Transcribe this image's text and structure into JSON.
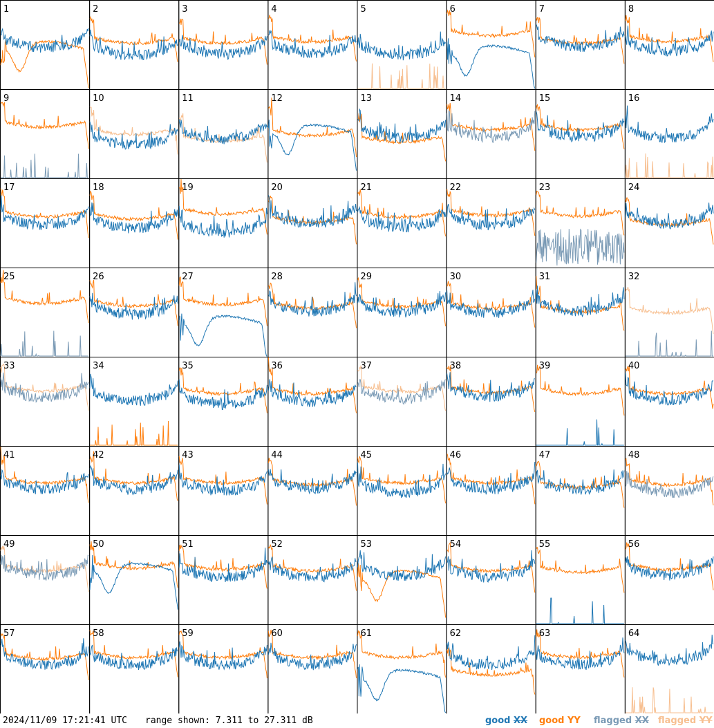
{
  "footer": {
    "timestamp": "2024/11/09 17:21:41 UTC",
    "range_prefix": "range shown:",
    "range_min": "7.311",
    "range_to": "to",
    "range_max": "27.311",
    "range_unit": "dB"
  },
  "legend": [
    {
      "prefix": "good",
      "pol": "XX",
      "color": "#1f77b4"
    },
    {
      "prefix": "good",
      "pol": "YY",
      "color": "#ff7f0e"
    },
    {
      "prefix": "flagged",
      "pol": "XX",
      "color": "#7a9ab5"
    },
    {
      "prefix": "flagged",
      "pol": "YY",
      "color": "#f7bf90"
    }
  ],
  "colors": {
    "good_xx": "#1f77b4",
    "good_yy": "#ff7f0e",
    "flagged_xx": "#7a9ab5",
    "flagged_yy": "#f7bf90"
  },
  "chart_data": {
    "type": "line",
    "description_units": "power (dB) vs frequency channel, per antenna panel",
    "range_db": [
      7.311,
      27.311
    ],
    "grid": {
      "rows": 8,
      "cols": 8
    },
    "panels": [
      {
        "id": "1",
        "xx": {
          "state": "good",
          "shape": "wave",
          "level": 18.8
        },
        "yy": {
          "state": "good",
          "shape": "dipcurve",
          "level": 16.0
        }
      },
      {
        "id": "2",
        "xx": {
          "state": "good",
          "shape": "wave",
          "level": 17.0
        },
        "yy": {
          "state": "good",
          "shape": "flat",
          "level": 19.0
        }
      },
      {
        "id": "3",
        "xx": {
          "state": "good",
          "shape": "wave",
          "level": 17.3
        },
        "yy": {
          "state": "good",
          "shape": "flat",
          "level": 19.0
        }
      },
      {
        "id": "4",
        "xx": {
          "state": "good",
          "shape": "wave",
          "level": 17.6
        },
        "yy": {
          "state": "good",
          "shape": "flat",
          "level": 19.3
        }
      },
      {
        "id": "5",
        "xx": {
          "state": "good",
          "shape": "wave",
          "level": 17.0
        },
        "yy": {
          "state": "flagged",
          "shape": "spikes",
          "level": 7.3
        }
      },
      {
        "id": "6",
        "xx": {
          "state": "good",
          "shape": "dipcurve",
          "level": 15.0
        },
        "yy": {
          "state": "good",
          "shape": "flat",
          "level": 20.7
        }
      },
      {
        "id": "7",
        "xx": {
          "state": "good",
          "shape": "wave",
          "level": 19.0
        },
        "yy": {
          "state": "good",
          "shape": "flat",
          "level": 19.0
        }
      },
      {
        "id": "8",
        "xx": {
          "state": "good",
          "shape": "wave",
          "level": 18.0
        },
        "yy": {
          "state": "good",
          "shape": "flat",
          "level": 19.4
        }
      },
      {
        "id": "9",
        "xx": {
          "state": "flagged",
          "shape": "spikes",
          "level": 7.3
        },
        "yy": {
          "state": "good",
          "shape": "flat",
          "level": 20.2
        }
      },
      {
        "id": "10",
        "xx": {
          "state": "good",
          "shape": "wave",
          "level": 17.0
        },
        "yy": {
          "state": "flagged",
          "shape": "flat",
          "level": 18.5
        }
      },
      {
        "id": "11",
        "xx": {
          "state": "good",
          "shape": "wave",
          "level": 18.3
        },
        "yy": {
          "state": "flagged",
          "shape": "flat",
          "level": 17.0
        }
      },
      {
        "id": "12",
        "xx": {
          "state": "good",
          "shape": "dipcurve",
          "level": 17.3
        },
        "yy": {
          "state": "good",
          "shape": "flat",
          "level": 18.3
        }
      },
      {
        "id": "13",
        "xx": {
          "state": "good",
          "shape": "wave",
          "level": 18.6
        },
        "yy": {
          "state": "good",
          "shape": "flat",
          "level": 16.8
        }
      },
      {
        "id": "14",
        "xx": {
          "state": "flagged",
          "shape": "wave",
          "level": 18.7
        },
        "yy": {
          "state": "good",
          "shape": "flat",
          "level": 19.6
        }
      },
      {
        "id": "15",
        "xx": {
          "state": "good",
          "shape": "wave",
          "level": 18.7
        },
        "yy": {
          "state": "good",
          "shape": "flat",
          "level": 19.6
        }
      },
      {
        "id": "16",
        "xx": {
          "state": "good",
          "shape": "wave",
          "level": 18.5
        },
        "yy": {
          "state": "flagged",
          "shape": "spikes",
          "level": 7.3
        }
      },
      {
        "id": "17",
        "xx": {
          "state": "good",
          "shape": "wave",
          "level": 19.0
        },
        "yy": {
          "state": "good",
          "shape": "flat",
          "level": 20.1
        }
      },
      {
        "id": "18",
        "xx": {
          "state": "good",
          "shape": "wave",
          "level": 18.3
        },
        "yy": {
          "state": "good",
          "shape": "flat",
          "level": 19.6
        }
      },
      {
        "id": "19",
        "xx": {
          "state": "good",
          "shape": "wave",
          "level": 17.2
        },
        "yy": {
          "state": "good",
          "shape": "flat",
          "level": 20.7
        }
      },
      {
        "id": "20",
        "xx": {
          "state": "good",
          "shape": "wave",
          "level": 19.4
        },
        "yy": {
          "state": "good",
          "shape": "flat",
          "level": 18.8
        }
      },
      {
        "id": "21",
        "xx": {
          "state": "good",
          "shape": "wave",
          "level": 18.5
        },
        "yy": {
          "state": "good",
          "shape": "flat",
          "level": 20.0
        }
      },
      {
        "id": "22",
        "xx": {
          "state": "good",
          "shape": "wave",
          "level": 19.0
        },
        "yy": {
          "state": "good",
          "shape": "flat",
          "level": 20.4
        }
      },
      {
        "id": "23",
        "xx": {
          "state": "flagged",
          "shape": "noise",
          "level": 10.0
        },
        "yy": {
          "state": "good",
          "shape": "flat",
          "level": 20.2
        }
      },
      {
        "id": "24",
        "xx": {
          "state": "good",
          "shape": "wave",
          "level": 19.3
        },
        "yy": {
          "state": "good",
          "shape": "flat",
          "level": 18.3
        }
      },
      {
        "id": "25",
        "xx": {
          "state": "flagged",
          "shape": "spikes",
          "level": 7.3
        },
        "yy": {
          "state": "good",
          "shape": "flat",
          "level": 20.7
        }
      },
      {
        "id": "26",
        "xx": {
          "state": "good",
          "shape": "wave",
          "level": 19.0
        },
        "yy": {
          "state": "good",
          "shape": "flat",
          "level": 20.1
        }
      },
      {
        "id": "27",
        "xx": {
          "state": "good",
          "shape": "dipcurve",
          "level": 14.4
        },
        "yy": {
          "state": "good",
          "shape": "flat",
          "level": 20.4
        }
      },
      {
        "id": "28",
        "xx": {
          "state": "good",
          "shape": "wave",
          "level": 19.6
        },
        "yy": {
          "state": "good",
          "shape": "flat",
          "level": 19.6
        }
      },
      {
        "id": "29",
        "xx": {
          "state": "good",
          "shape": "wave",
          "level": 19.4
        },
        "yy": {
          "state": "good",
          "shape": "flat",
          "level": 20.0
        }
      },
      {
        "id": "30",
        "xx": {
          "state": "good",
          "shape": "wave",
          "level": 19.3
        },
        "yy": {
          "state": "good",
          "shape": "flat",
          "level": 19.6
        }
      },
      {
        "id": "31",
        "xx": {
          "state": "good",
          "shape": "wave",
          "level": 19.7
        },
        "yy": {
          "state": "good",
          "shape": "flat",
          "level": 18.8
        }
      },
      {
        "id": "32",
        "xx": {
          "state": "flagged",
          "shape": "spikes",
          "level": 7.3
        },
        "yy": {
          "state": "flagged",
          "shape": "flat",
          "level": 18.5
        }
      },
      {
        "id": "33",
        "xx": {
          "state": "flagged",
          "shape": "wave",
          "level": 20.4
        },
        "yy": {
          "state": "flagged",
          "shape": "flat",
          "level": 21.0
        }
      },
      {
        "id": "34",
        "xx": {
          "state": "good",
          "shape": "wave",
          "level": 19.6
        },
        "yy": {
          "state": "good",
          "shape": "spikes",
          "level": 7.3
        }
      },
      {
        "id": "35",
        "xx": {
          "state": "good",
          "shape": "wave",
          "level": 18.8
        },
        "yy": {
          "state": "good",
          "shape": "flat",
          "level": 20.4
        }
      },
      {
        "id": "36",
        "xx": {
          "state": "good",
          "shape": "wave",
          "level": 19.4
        },
        "yy": {
          "state": "good",
          "shape": "flat",
          "level": 20.4
        }
      },
      {
        "id": "37",
        "xx": {
          "state": "flagged",
          "shape": "wave",
          "level": 20.0
        },
        "yy": {
          "state": "flagged",
          "shape": "flat",
          "level": 20.9
        }
      },
      {
        "id": "38",
        "xx": {
          "state": "good",
          "shape": "wave",
          "level": 20.6
        },
        "yy": {
          "state": "good",
          "shape": "flat",
          "level": 20.7
        }
      },
      {
        "id": "39",
        "xx": {
          "state": "good",
          "shape": "spikes",
          "level": 7.3
        },
        "yy": {
          "state": "good",
          "shape": "flat",
          "level": 20.4
        }
      },
      {
        "id": "40",
        "xx": {
          "state": "good",
          "shape": "wave",
          "level": 19.7
        },
        "yy": {
          "state": "good",
          "shape": "flat",
          "level": 20.4
        }
      },
      {
        "id": "41",
        "xx": {
          "state": "good",
          "shape": "wave",
          "level": 19.7
        },
        "yy": {
          "state": "good",
          "shape": "flat",
          "level": 20.4
        }
      },
      {
        "id": "42",
        "xx": {
          "state": "good",
          "shape": "wave",
          "level": 19.7
        },
        "yy": {
          "state": "good",
          "shape": "flat",
          "level": 20.4
        }
      },
      {
        "id": "43",
        "xx": {
          "state": "good",
          "shape": "wave",
          "level": 19.4
        },
        "yy": {
          "state": "good",
          "shape": "flat",
          "level": 20.4
        }
      },
      {
        "id": "44",
        "xx": {
          "state": "good",
          "shape": "wave",
          "level": 20.0
        },
        "yy": {
          "state": "good",
          "shape": "flat",
          "level": 20.0
        }
      },
      {
        "id": "45",
        "xx": {
          "state": "good",
          "shape": "wave",
          "level": 19.0
        },
        "yy": {
          "state": "good",
          "shape": "flat",
          "level": 20.4
        }
      },
      {
        "id": "46",
        "xx": {
          "state": "good",
          "shape": "wave",
          "level": 19.7
        },
        "yy": {
          "state": "good",
          "shape": "flat",
          "level": 20.4
        }
      },
      {
        "id": "47",
        "xx": {
          "state": "good",
          "shape": "wave",
          "level": 19.7
        },
        "yy": {
          "state": "good",
          "shape": "flat",
          "level": 19.4
        }
      },
      {
        "id": "48",
        "xx": {
          "state": "flagged",
          "shape": "wave",
          "level": 19.0
        },
        "yy": {
          "state": "good",
          "shape": "flat",
          "level": 20.0
        }
      },
      {
        "id": "49",
        "xx": {
          "state": "flagged",
          "shape": "wave",
          "level": 20.4
        },
        "yy": {
          "state": "flagged",
          "shape": "flat",
          "level": 20.7
        }
      },
      {
        "id": "50",
        "xx": {
          "state": "good",
          "shape": "dipcurve",
          "level": 19.0
        },
        "yy": {
          "state": "good",
          "shape": "flat",
          "level": 21.3
        }
      },
      {
        "id": "51",
        "xx": {
          "state": "good",
          "shape": "wave",
          "level": 20.0
        },
        "yy": {
          "state": "good",
          "shape": "flat",
          "level": 21.0
        }
      },
      {
        "id": "52",
        "xx": {
          "state": "good",
          "shape": "wave",
          "level": 20.0
        },
        "yy": {
          "state": "good",
          "shape": "flat",
          "level": 20.7
        }
      },
      {
        "id": "53",
        "xx": {
          "state": "good",
          "shape": "wave",
          "level": 20.4
        },
        "yy": {
          "state": "good",
          "shape": "dipcurve",
          "level": 17.3
        }
      },
      {
        "id": "54",
        "xx": {
          "state": "good",
          "shape": "wave",
          "level": 20.0
        },
        "yy": {
          "state": "good",
          "shape": "flat",
          "level": 20.7
        }
      },
      {
        "id": "55",
        "xx": {
          "state": "good",
          "shape": "spikes",
          "level": 7.3
        },
        "yy": {
          "state": "good",
          "shape": "flat",
          "level": 20.4
        }
      },
      {
        "id": "56",
        "xx": {
          "state": "good",
          "shape": "wave",
          "level": 20.4
        },
        "yy": {
          "state": "good",
          "shape": "flat",
          "level": 21.0
        }
      },
      {
        "id": "57",
        "xx": {
          "state": "good",
          "shape": "wave",
          "level": 20.4
        },
        "yy": {
          "state": "good",
          "shape": "flat",
          "level": 21.0
        }
      },
      {
        "id": "58",
        "xx": {
          "state": "good",
          "shape": "wave",
          "level": 20.4
        },
        "yy": {
          "state": "good",
          "shape": "flat",
          "level": 21.3
        }
      },
      {
        "id": "59",
        "xx": {
          "state": "good",
          "shape": "wave",
          "level": 20.4
        },
        "yy": {
          "state": "good",
          "shape": "flat",
          "level": 21.3
        }
      },
      {
        "id": "60",
        "xx": {
          "state": "good",
          "shape": "wave",
          "level": 20.4
        },
        "yy": {
          "state": "good",
          "shape": "flat",
          "level": 21.3
        }
      },
      {
        "id": "61",
        "xx": {
          "state": "good",
          "shape": "dipcurve",
          "level": 15.0
        },
        "yy": {
          "state": "good",
          "shape": "flat",
          "level": 21.3
        }
      },
      {
        "id": "62",
        "xx": {
          "state": "good",
          "shape": "wave",
          "level": 20.4
        },
        "yy": {
          "state": "good",
          "shape": "flat",
          "level": 17.3
        }
      },
      {
        "id": "63",
        "xx": {
          "state": "good",
          "shape": "wave",
          "level": 20.4
        },
        "yy": {
          "state": "good",
          "shape": "flat",
          "level": 21.3
        }
      },
      {
        "id": "64",
        "xx": {
          "state": "good",
          "shape": "wave",
          "level": 21.3
        },
        "yy": {
          "state": "flagged",
          "shape": "spikes",
          "level": 7.3
        }
      }
    ]
  }
}
